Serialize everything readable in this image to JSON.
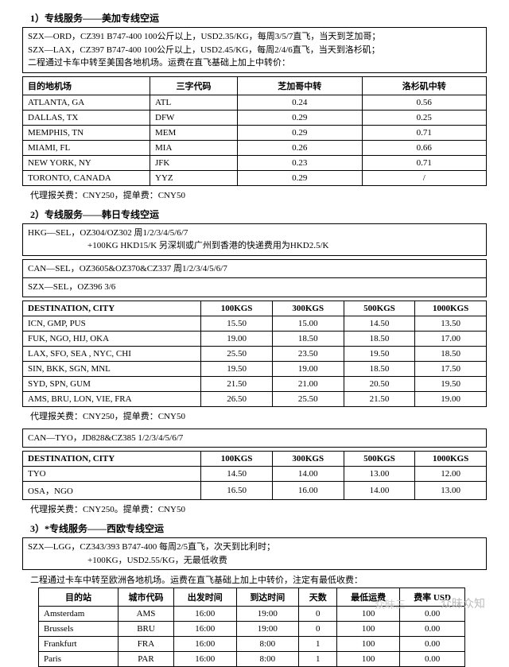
{
  "section1": {
    "title": "1）专线服务——美加专线空运",
    "info": "SZX—ORD，CZ391 B747-400  100公斤以上，USD2.35/KG，每周3/5/7直飞，当天到芝加哥；\nSZX—LAX，CZ397 B747-400  100公斤以上，USD2.45/KG，每周2/4/6直飞，当天到洛杉矶；\n二程通过卡车中转至美国各地机场。运费在直飞基础上加上中转价：",
    "headers": [
      "目的地机场",
      "三字代码",
      "芝加哥中转",
      "洛杉矶中转"
    ],
    "rows": [
      [
        "ATLANTA, GA",
        "ATL",
        "0.24",
        "0.56"
      ],
      [
        "DALLAS, TX",
        "DFW",
        "0.29",
        "0.25"
      ],
      [
        "MEMPHIS, TN",
        "MEM",
        "0.29",
        "0.71"
      ],
      [
        "MIAMI, FL",
        "MIA",
        "0.26",
        "0.66"
      ],
      [
        "NEW YORK, NY",
        "JFK",
        "0.23",
        "0.71"
      ],
      [
        "TORONTO, CANADA",
        "YYZ",
        "0.29",
        "/"
      ]
    ],
    "note": "代理报关费：CNY250，提单费：CNY50"
  },
  "section2": {
    "title": "2）专线服务——韩日专线空运",
    "info1_l1": "HKG—SEL，OZ304/OZ302           周1/2/3/4/5/6/7",
    "info1_l2": "+100KG   HKD15/K   另深圳或广州到香港的快递费用为HKD2.5/K",
    "info2_l1": "CAN—SEL，OZ3605&OZ370&CZ337       周1/2/3/4/5/6/7",
    "info2_l2": "SZX—SEL，OZ396                  3/6",
    "headers": [
      "DESTINATION, CITY",
      "100KGS",
      "300KGS",
      "500KGS",
      "1000KGS"
    ],
    "rows": [
      [
        "ICN, GMP, PUS",
        "15.50",
        "15.00",
        "14.50",
        "13.50"
      ],
      [
        "FUK, NGO, HIJ, OKA",
        "19.00",
        "18.50",
        "18.50",
        "17.00"
      ],
      [
        "LAX, SFO, SEA , NYC, CHI",
        "25.50",
        "23.50",
        "19.50",
        "18.50"
      ],
      [
        "SIN, BKK, SGN, MNL",
        "19.50",
        "19.00",
        "18.50",
        "17.50"
      ],
      [
        "SYD, SPN, GUM",
        "21.50",
        "21.00",
        "20.50",
        "19.50"
      ],
      [
        "AMS, BRU, LON, VIE, FRA",
        "26.50",
        "25.50",
        "21.50",
        "19.00"
      ]
    ],
    "note2": "代理报关费：CNY250，提单费：CNY50",
    "info3": "CAN—TYO，JD828&CZ385            1/2/3/4/5/6/7",
    "rows2": [
      [
        "TYO",
        "14.50",
        "14.00",
        "13.00",
        "12.00"
      ],
      [
        "OSA，NGO",
        "16.50",
        "16.00",
        "14.00",
        "13.00"
      ]
    ],
    "note3": "代理报关费：CNY250。提单费：CNY50"
  },
  "section3": {
    "title": "3）*专线服务——西欧专线空运",
    "info_l1": "SZX—LGG，CZ343/393  B747-400 每周2/5直飞，次天到比利时；",
    "info_l2": "+100KG，USD2.55/KG，无最低收费",
    "line2": "二程通过卡车中转至欧洲各地机场。运费在直飞基础上加上中转价，注定有最低收费：",
    "headers": [
      "目的站",
      "城市代码",
      "出发时间",
      "到达时间",
      "天数",
      "最低运费",
      "费率 USD"
    ],
    "rows": [
      [
        "Amsterdam",
        "AMS",
        "16:00",
        "19:00",
        "0",
        "100",
        "0.00"
      ],
      [
        "Brussels",
        "BRU",
        "16:00",
        "19:00",
        "0",
        "100",
        "0.00"
      ],
      [
        "Frankfurt",
        "FRA",
        "16:00",
        "8:00",
        "1",
        "100",
        "0.00"
      ],
      [
        "Paris",
        "PAR",
        "16:00",
        "8:00",
        "1",
        "100",
        "0.00"
      ]
    ]
  },
  "watermark": "众昧众知",
  "wm_prefix": "众昧三"
}
